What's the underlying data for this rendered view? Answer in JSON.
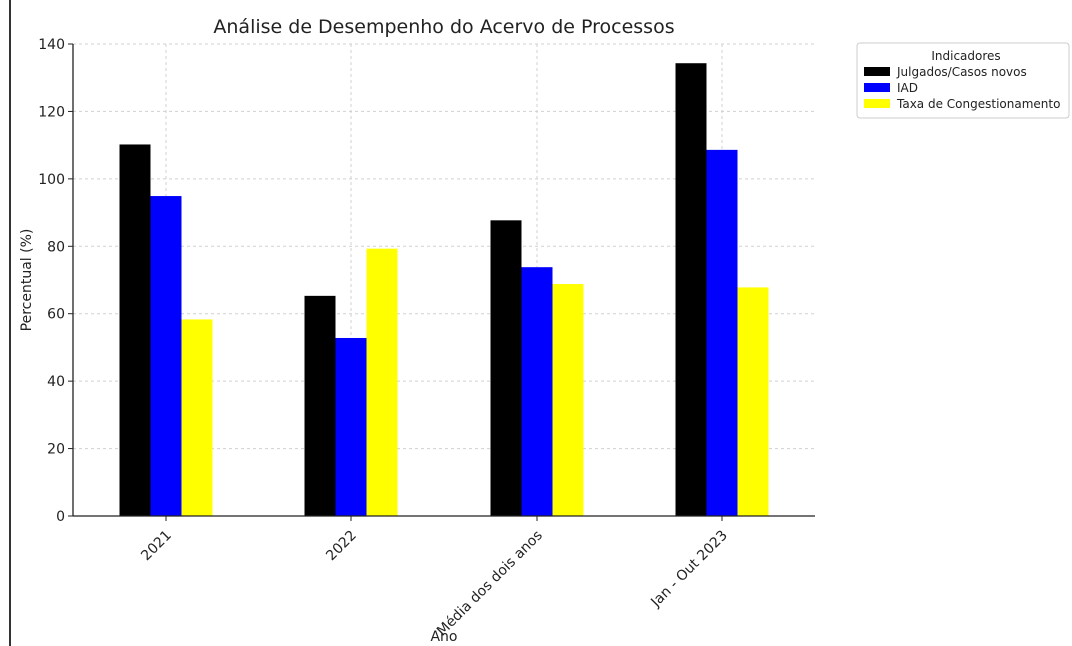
{
  "chart_data": {
    "type": "bar",
    "title": "Análise de Desempenho do Acervo de Processos",
    "xlabel": "Ano",
    "ylabel": "Percentual (%)",
    "ylim": [
      0,
      140
    ],
    "yticks": [
      0,
      20,
      40,
      60,
      80,
      100,
      120,
      140
    ],
    "grid": true,
    "legend_placement": "outside-top-right",
    "legend_title": "Indicadores",
    "categories": [
      "2021",
      "2022",
      "Média dos dois anos",
      "Jan - Out 2023"
    ],
    "series": [
      {
        "name": "Julgados/Casos novos",
        "color": "#000000",
        "values": [
          110.2,
          65.3,
          87.7,
          134.3
        ]
      },
      {
        "name": "IAD",
        "color": "#0000ff",
        "values": [
          94.9,
          52.8,
          73.8,
          108.6
        ]
      },
      {
        "name": "Taxa de Congestionamento",
        "color": "#ffff00",
        "values": [
          58.3,
          79.3,
          68.8,
          67.8
        ]
      }
    ]
  }
}
